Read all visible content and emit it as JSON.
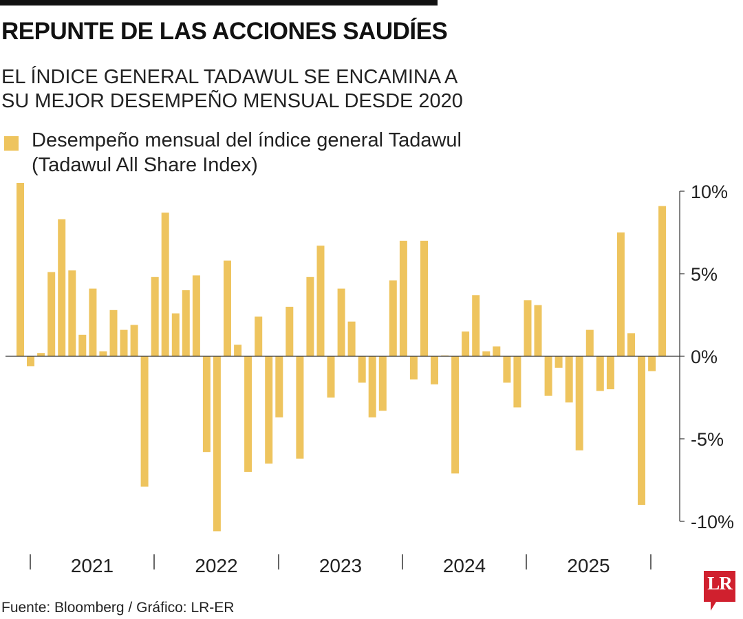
{
  "title": "REPUNTE DE LAS ACCIONES SAUDÍES",
  "subtitle": "EL ÍNDICE GENERAL TADAWUL SE ENCAMINA A SU MEJOR DESEMPEÑO MENSUAL DESDE 2020",
  "legend_label": "Desempeño mensual del índice general Tadawul (Tadawul All Share Index)",
  "source": "Fuente: Bloomberg / Gráfico: LR-ER",
  "logo_text": "LR",
  "colors": {
    "bar": "#EEC45E",
    "axis": "#333333",
    "logo": "#D0202E"
  },
  "chart_data": {
    "type": "bar",
    "title": "",
    "xlabel": "",
    "ylabel": "",
    "ylim": [
      -10.6,
      10.6
    ],
    "y_ticks": [
      10,
      5,
      0,
      -5,
      -10
    ],
    "y_tick_labels": [
      "10%",
      "5%",
      "0%",
      "-5%",
      "-10%"
    ],
    "year_labels": [
      "2021",
      "2022",
      "2023",
      "2024",
      "2025"
    ],
    "grid": false,
    "series": [
      {
        "name": "Desempeño mensual del índice general Tadawul",
        "values": [
          10.5,
          -0.6,
          0.2,
          5.1,
          8.3,
          5.2,
          1.3,
          4.1,
          0.3,
          2.8,
          1.6,
          1.9,
          -7.9,
          4.8,
          8.7,
          2.6,
          4.0,
          4.9,
          -5.8,
          -10.6,
          5.8,
          0.7,
          -7.0,
          2.4,
          -6.5,
          -3.7,
          3.0,
          -6.2,
          4.8,
          6.7,
          -2.5,
          4.1,
          2.1,
          -1.6,
          -3.7,
          -3.3,
          4.6,
          7.0,
          -1.4,
          7.0,
          -1.7,
          0.05,
          -7.1,
          1.5,
          3.7,
          0.3,
          0.6,
          -1.6,
          -3.1,
          3.4,
          3.1,
          -2.4,
          -0.7,
          -2.8,
          -5.7,
          1.6,
          -2.1,
          -2.0,
          7.5,
          1.4,
          -9.0,
          -0.9,
          9.1
        ]
      }
    ]
  }
}
